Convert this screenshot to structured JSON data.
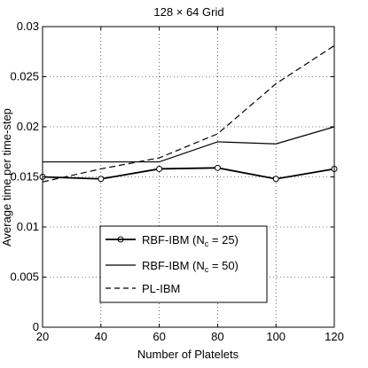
{
  "chart_data": {
    "type": "line",
    "title": {
      "prefix": "128 ",
      "times": "×",
      "suffix": " 64 Grid"
    },
    "xlabel": "Number of Platelets",
    "ylabel": "Average time per time-step",
    "x": [
      20,
      40,
      60,
      80,
      100,
      120
    ],
    "xlim": [
      20,
      120
    ],
    "ylim": [
      0,
      0.03
    ],
    "xticks": [
      20,
      40,
      60,
      80,
      100,
      120
    ],
    "xtick_labels": [
      "20",
      "40",
      "60",
      "80",
      "100",
      "120"
    ],
    "yticks": [
      0,
      0.005,
      0.01,
      0.015,
      0.02,
      0.025,
      0.03
    ],
    "ytick_labels": [
      "0",
      "0.005",
      "0.01",
      "0.015",
      "0.02",
      "0.025",
      "0.03"
    ],
    "grid": true,
    "legend_position": "lower-center",
    "series": [
      {
        "name": {
          "main": "RBF-IBM (N",
          "sub": "c",
          "tail": " = 25)"
        },
        "style": "solid-circle",
        "color": "#000000",
        "values": [
          0.015,
          0.0148,
          0.0158,
          0.0159,
          0.0148,
          0.0158
        ]
      },
      {
        "name": {
          "main": "RBF-IBM (N",
          "sub": "c",
          "tail": " = 50)"
        },
        "style": "solid",
        "color": "#000000",
        "values": [
          0.0165,
          0.0165,
          0.0165,
          0.0185,
          0.0183,
          0.02
        ]
      },
      {
        "name": {
          "main": "PL-IBM",
          "sub": "",
          "tail": ""
        },
        "style": "dashed",
        "color": "#000000",
        "values": [
          0.0145,
          0.0158,
          0.0169,
          0.0193,
          0.0243,
          0.0281
        ]
      }
    ]
  }
}
